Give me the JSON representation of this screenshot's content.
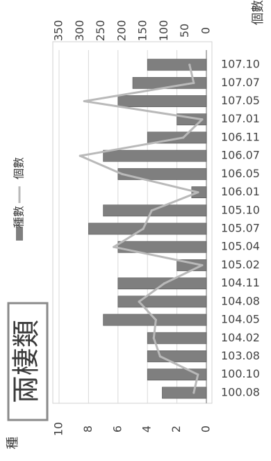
{
  "chart_data": {
    "type": "bar",
    "title": "兩棲類",
    "categories": [
      "107.10",
      "107.07",
      "107.05",
      "107.01",
      "106.11",
      "106.07",
      "106.05",
      "106.01",
      "105.10",
      "105.07",
      "105.04",
      "105.02",
      "104.11",
      "104.08",
      "104.05",
      "104.02",
      "103.08",
      "100.10",
      "100.08"
    ],
    "series": [
      {
        "name": "種數",
        "type": "bar",
        "axis": "left",
        "color": "#7f7f7f",
        "values": [
          4,
          5,
          6,
          2,
          4,
          7,
          6,
          1,
          7,
          8,
          6,
          2,
          6,
          6,
          7,
          4,
          4,
          4,
          3
        ]
      },
      {
        "name": "個數",
        "type": "line",
        "axis": "right",
        "color": "#b9b9b9",
        "values": [
          40,
          30,
          290,
          10,
          55,
          300,
          200,
          20,
          130,
          150,
          220,
          10,
          100,
          160,
          120,
          125,
          110,
          20,
          30
        ]
      }
    ],
    "left_axis": {
      "label": "種",
      "min": 0,
      "max": 10,
      "ticks": [
        0,
        2,
        4,
        6,
        8,
        10
      ]
    },
    "right_axis": {
      "label": "個數",
      "min": 0,
      "max": 350,
      "ticks": [
        0,
        50,
        100,
        150,
        200,
        250,
        300,
        350
      ]
    },
    "legend_position": "middle",
    "grid": true,
    "orientation": "rotated"
  }
}
